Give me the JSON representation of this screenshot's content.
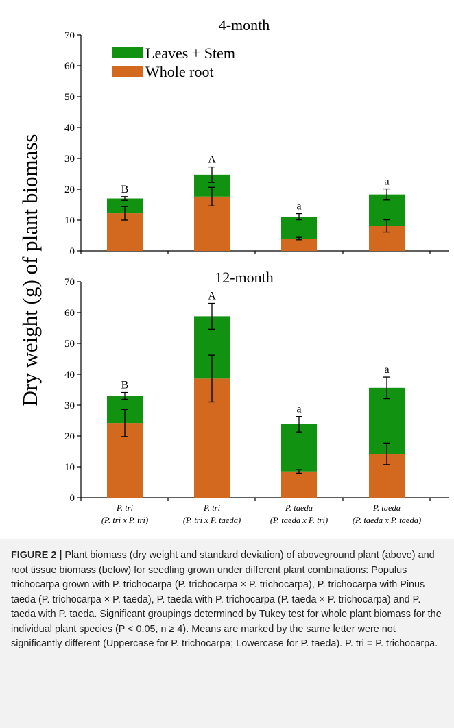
{
  "chart_data": [
    {
      "type": "bar",
      "stacked": true,
      "title": "4-month",
      "ylabel": "Dry weight (g) of plant biomass",
      "ylim": [
        0,
        70
      ],
      "yticks": [
        0,
        10,
        20,
        30,
        40,
        50,
        60,
        70
      ],
      "legend": {
        "placement": "top-left",
        "entries": [
          "Leaves + Stem",
          "Whole root"
        ]
      },
      "categories": [
        {
          "line1": "P. tri",
          "line2": "(P. tri x P. tri)"
        },
        {
          "line1": "P. tri",
          "line2": "(P. tri x P. taeda)"
        },
        {
          "line1": "P. taeda",
          "line2": "(P. taeda x P. tri)"
        },
        {
          "line1": "P. taeda",
          "line2": "(P. taeda x P. taeda)"
        }
      ],
      "series": [
        {
          "name": "Whole root",
          "color": "#d2691e",
          "values": [
            12.2,
            17.6,
            4.0,
            8.1
          ],
          "error": [
            2.2,
            3.0,
            0.4,
            2.0
          ]
        },
        {
          "name": "Leaves + Stem",
          "color": "#119211",
          "values": [
            4.8,
            7.1,
            7.1,
            10.2
          ],
          "error": [
            0.6,
            2.5,
            1.0,
            1.8
          ]
        }
      ],
      "letters": [
        "B",
        "A",
        "a",
        "a"
      ]
    },
    {
      "type": "bar",
      "stacked": true,
      "title": "12-month",
      "ylabel": "Dry weight (g) of plant biomass",
      "ylim": [
        0,
        70
      ],
      "yticks": [
        0,
        10,
        20,
        30,
        40,
        50,
        60,
        70
      ],
      "categories": [
        {
          "line1": "P. tri",
          "line2": "(P. tri x P. tri)"
        },
        {
          "line1": "P. tri",
          "line2": "(P. tri x P. taeda)"
        },
        {
          "line1": "P. taeda",
          "line2": "(P. taeda x P. tri)"
        },
        {
          "line1": "P. taeda",
          "line2": "(P. taeda x P. taeda)"
        }
      ],
      "series": [
        {
          "name": "Whole root",
          "color": "#d2691e",
          "values": [
            24.2,
            38.6,
            8.5,
            14.2
          ],
          "error": [
            4.4,
            7.6,
            0.6,
            3.5
          ]
        },
        {
          "name": "Leaves + Stem",
          "color": "#119211",
          "values": [
            8.8,
            20.2,
            15.3,
            21.4
          ],
          "error": [
            1.1,
            4.2,
            2.5,
            3.5
          ]
        }
      ],
      "letters": [
        "B",
        "A",
        "a",
        "a"
      ]
    }
  ],
  "caption": {
    "label": "FIGURE 2 |",
    "text": "Plant biomass (dry weight and standard deviation) of aboveground plant (above) and root tissue biomass (below) for seedling grown under different plant combinations: Populus trichocarpa grown with P. trichocarpa (P. trichocarpa × P. trichocarpa), P. trichocarpa with Pinus taeda (P. trichocarpa × P. taeda), P. taeda with P. trichocarpa (P. taeda × P. trichocarpa) and P. taeda with P. taeda. Significant groupings determined by Tukey test for whole plant biomass for the individual plant species (P < 0.05, n ≥ 4). Means are marked by the same letter were not significantly different (Uppercase for P. trichocarpa; Lowercase for P. taeda). P. tri = P. trichocarpa."
  }
}
